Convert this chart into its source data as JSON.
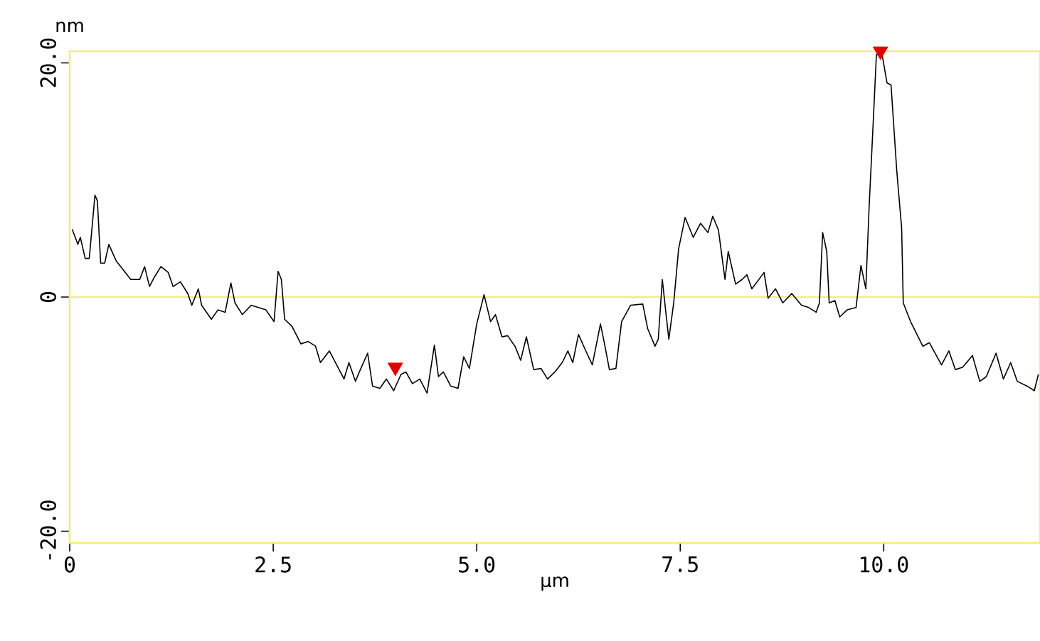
{
  "chart_data": {
    "type": "line",
    "xlabel": "µm",
    "ylabel": "nm",
    "xlim": [
      0,
      11.92
    ],
    "ylim": [
      -21,
      21
    ],
    "xticks": [
      0,
      2.5,
      {
        "value": 5,
        "label": "5.0"
      },
      7.5,
      {
        "value": 10,
        "label": "10.0"
      }
    ],
    "yticks": [
      {
        "value": -20,
        "label": "-20.0"
      },
      0,
      {
        "value": 20,
        "label": "20.0"
      }
    ],
    "ref_lines": [
      {
        "axis": "y",
        "value": 0,
        "color": "#f2ee7a"
      }
    ],
    "series": [
      {
        "color": "#000000",
        "x": [
          0.03,
          0.1,
          0.13,
          0.19,
          0.24,
          0.31,
          0.34,
          0.38,
          0.43,
          0.48,
          0.57,
          0.66,
          0.75,
          0.86,
          0.92,
          0.98,
          1.04,
          1.12,
          1.21,
          1.27,
          1.36,
          1.45,
          1.5,
          1.58,
          1.62,
          1.74,
          1.82,
          1.91,
          1.98,
          2.03,
          2.12,
          2.23,
          2.32,
          2.41,
          2.51,
          2.56,
          2.6,
          2.64,
          2.73,
          2.84,
          2.93,
          3.02,
          3.08,
          3.19,
          3.28,
          3.37,
          3.43,
          3.51,
          3.57,
          3.66,
          3.72,
          3.81,
          3.89,
          3.98,
          4.07,
          4.13,
          4.21,
          4.3,
          4.39,
          4.48,
          4.53,
          4.59,
          4.68,
          4.77,
          4.84,
          4.91,
          5.0,
          5.09,
          5.17,
          5.23,
          5.31,
          5.38,
          5.47,
          5.54,
          5.61,
          5.7,
          5.79,
          5.87,
          5.96,
          6.05,
          6.12,
          6.18,
          6.25,
          6.34,
          6.42,
          6.52,
          6.57,
          6.63,
          6.71,
          6.78,
          6.89,
          7.04,
          7.1,
          7.19,
          7.23,
          7.28,
          7.32,
          7.36,
          7.42,
          7.48,
          7.56,
          7.66,
          7.75,
          7.84,
          7.9,
          7.97,
          8.05,
          8.09,
          8.18,
          8.26,
          8.32,
          8.38,
          8.53,
          8.58,
          8.67,
          8.76,
          8.87,
          8.99,
          9.08,
          9.17,
          9.21,
          9.25,
          9.3,
          9.33,
          9.4,
          9.46,
          9.55,
          9.66,
          9.72,
          9.78,
          9.82,
          9.87,
          9.91,
          9.98,
          10.04,
          10.09,
          10.16,
          10.22,
          10.24,
          10.33,
          10.48,
          10.56,
          10.71,
          10.8,
          10.88,
          10.97,
          11.09,
          11.18,
          11.26,
          11.38,
          11.47,
          11.56,
          11.64,
          11.76,
          11.85,
          11.9
        ],
        "values": [
          5.8,
          4.5,
          5.1,
          3.3,
          3.3,
          8.7,
          8.2,
          2.9,
          2.9,
          4.5,
          3.1,
          2.3,
          1.5,
          1.5,
          2.6,
          0.9,
          1.7,
          2.6,
          2.1,
          0.9,
          1.3,
          0.3,
          -0.7,
          0.7,
          -0.7,
          -1.9,
          -1.1,
          -1.3,
          1.2,
          -0.5,
          -1.5,
          -0.7,
          -0.9,
          -1.1,
          -2.1,
          2.2,
          1.5,
          -1.9,
          -2.5,
          -4.0,
          -3.8,
          -4.2,
          -5.6,
          -4.6,
          -5.8,
          -7.0,
          -5.6,
          -7.2,
          -6.2,
          -4.8,
          -7.6,
          -7.8,
          -7.0,
          -8.0,
          -6.6,
          -6.4,
          -7.4,
          -7.0,
          -8.2,
          -4.1,
          -6.8,
          -6.4,
          -7.6,
          -7.8,
          -5.1,
          -6.1,
          -2.3,
          0.2,
          -2.1,
          -1.5,
          -3.4,
          -3.3,
          -4.2,
          -5.4,
          -3.4,
          -6.2,
          -6.1,
          -7.0,
          -6.4,
          -5.6,
          -4.6,
          -5.6,
          -3.2,
          -4.6,
          -5.8,
          -2.3,
          -4.0,
          -6.2,
          -6.1,
          -2.1,
          -0.7,
          -0.6,
          -2.7,
          -4.2,
          -3.6,
          1.5,
          -1.1,
          -3.6,
          -0.5,
          4.1,
          6.8,
          5.1,
          6.3,
          5.5,
          6.9,
          5.7,
          1.5,
          3.9,
          1.1,
          1.5,
          1.9,
          0.7,
          2.1,
          -0.1,
          0.7,
          -0.5,
          0.3,
          -0.7,
          -0.9,
          -1.3,
          -0.5,
          5.5,
          3.9,
          -0.5,
          -0.3,
          -1.7,
          -1.1,
          -0.9,
          2.7,
          0.7,
          7.6,
          14.8,
          20.7,
          20.7,
          18.3,
          18.1,
          10.8,
          5.9,
          -0.5,
          -2.1,
          -4.2,
          -3.9,
          -5.8,
          -4.6,
          -6.2,
          -6.0,
          -5.0,
          -7.2,
          -6.8,
          -4.8,
          -7.0,
          -5.6,
          -7.2,
          -7.6,
          -8.0,
          -6.6
        ]
      },
      {
        "type": "scatter",
        "color": "#e00000",
        "marker": "triangle",
        "x": [
          4.0,
          9.96
        ],
        "values": [
          -6.0,
          21.0
        ]
      }
    ]
  }
}
